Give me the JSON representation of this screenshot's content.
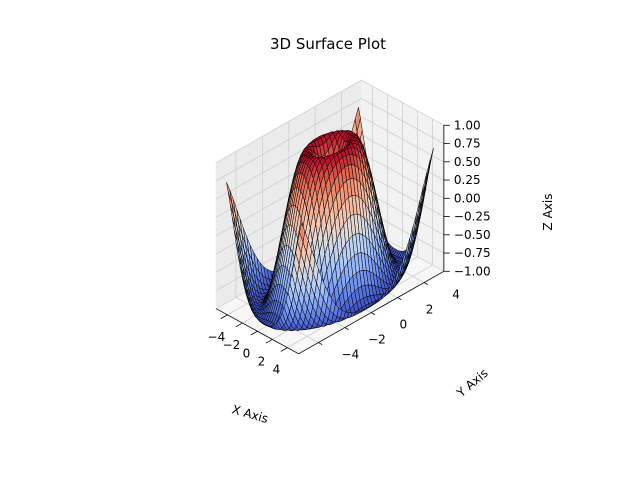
{
  "chart_data": {
    "type": "surface3d",
    "title": "3D Surface Plot",
    "xlabel": "X Axis",
    "ylabel": "Y Axis",
    "zlabel": "Z Axis",
    "function": "z = sin(sqrt(x^2 + y^2))",
    "colormap": "coolwarm",
    "grid": true,
    "xlim": [
      -5.5,
      5.5
    ],
    "ylim": [
      -5.5,
      5.5
    ],
    "zlim": [
      -1.0,
      1.0
    ],
    "x_range": [
      -5,
      5
    ],
    "y_range": [
      -5,
      5
    ],
    "samples": 40,
    "x_ticks": [
      "−4",
      "−2",
      "0",
      "2",
      "4"
    ],
    "x_tick_values": [
      -4,
      -2,
      0,
      2,
      4
    ],
    "y_ticks": [
      "−4",
      "−2",
      "0",
      "2",
      "4"
    ],
    "y_tick_values": [
      -4,
      -2,
      0,
      2,
      4
    ],
    "z_ticks": [
      "−1.00",
      "−0.75",
      "−0.50",
      "−0.25",
      "0.00",
      "0.25",
      "0.50",
      "0.75",
      "1.00"
    ],
    "z_tick_values": [
      -1.0,
      -0.75,
      -0.5,
      -0.25,
      0.0,
      0.25,
      0.5,
      0.75,
      1.0
    ]
  }
}
